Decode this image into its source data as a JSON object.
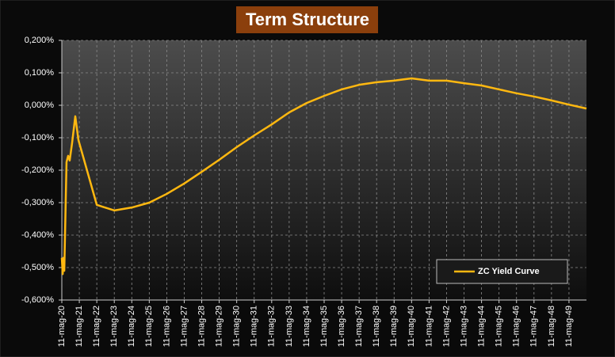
{
  "chart_data": {
    "type": "line",
    "title": "Term Structure",
    "x": [
      20,
      20.05,
      20.09,
      20.14,
      20.27,
      20.36,
      20.45,
      20.59,
      20.77,
      20.95,
      22,
      23,
      24,
      25,
      26,
      27,
      28,
      29,
      30,
      31,
      32,
      33,
      34,
      35,
      36,
      37,
      38,
      39,
      40,
      41,
      42,
      43,
      44,
      45,
      46,
      47,
      48,
      49,
      50
    ],
    "series": [
      {
        "name": "ZC Yield Curve",
        "color": "#ffb810",
        "values": [
          -0.47,
          -0.52,
          -0.47,
          -0.51,
          -0.175,
          -0.156,
          -0.17,
          -0.115,
          -0.034,
          -0.107,
          -0.307,
          -0.324,
          -0.315,
          -0.3,
          -0.273,
          -0.241,
          -0.205,
          -0.168,
          -0.129,
          -0.093,
          -0.059,
          -0.022,
          0.007,
          0.029,
          0.049,
          0.063,
          0.071,
          0.076,
          0.083,
          0.076,
          0.076,
          0.068,
          0.061,
          0.049,
          0.037,
          0.027,
          0.015,
          0.002,
          -0.01
        ]
      }
    ],
    "xlim": [
      20,
      50
    ],
    "xticks": [
      {
        "value": 20,
        "label": "11-mag-20"
      },
      {
        "value": 21,
        "label": "11-mag-21"
      },
      {
        "value": 22,
        "label": "11-mag-22"
      },
      {
        "value": 23,
        "label": "11-mag-23"
      },
      {
        "value": 24,
        "label": "11-mag-24"
      },
      {
        "value": 25,
        "label": "11-mag-25"
      },
      {
        "value": 26,
        "label": "11-mag-26"
      },
      {
        "value": 27,
        "label": "11-mag-27"
      },
      {
        "value": 28,
        "label": "11-mag-28"
      },
      {
        "value": 29,
        "label": "11-mag-29"
      },
      {
        "value": 30,
        "label": "11-mag-30"
      },
      {
        "value": 31,
        "label": "11-mag-31"
      },
      {
        "value": 32,
        "label": "11-mag-32"
      },
      {
        "value": 33,
        "label": "11-mag-33"
      },
      {
        "value": 34,
        "label": "11-mag-34"
      },
      {
        "value": 35,
        "label": "11-mag-35"
      },
      {
        "value": 36,
        "label": "11-mag-36"
      },
      {
        "value": 37,
        "label": "11-mag-37"
      },
      {
        "value": 38,
        "label": "11-mag-38"
      },
      {
        "value": 39,
        "label": "11-mag-39"
      },
      {
        "value": 40,
        "label": "11-mag-40"
      },
      {
        "value": 41,
        "label": "11-mag-41"
      },
      {
        "value": 42,
        "label": "11-mag-42"
      },
      {
        "value": 43,
        "label": "11-mag-43"
      },
      {
        "value": 44,
        "label": "11-mag-44"
      },
      {
        "value": 45,
        "label": "11-mag-45"
      },
      {
        "value": 46,
        "label": "11-mag-46"
      },
      {
        "value": 47,
        "label": "11-mag-47"
      },
      {
        "value": 48,
        "label": "11-mag-48"
      },
      {
        "value": 49,
        "label": "11-mag-49"
      }
    ],
    "ylim": [
      -0.6,
      0.2
    ],
    "yticks": [
      {
        "value": -0.6,
        "label": "-0,600%"
      },
      {
        "value": -0.5,
        "label": "-0,500%"
      },
      {
        "value": -0.4,
        "label": "-0,400%"
      },
      {
        "value": -0.3,
        "label": "-0,300%"
      },
      {
        "value": -0.2,
        "label": "-0,200%"
      },
      {
        "value": -0.1,
        "label": "-0,100%"
      },
      {
        "value": 0,
        "label": "0,000%"
      },
      {
        "value": 0.1,
        "label": "0,100%"
      },
      {
        "value": 0.2,
        "label": "0,200%"
      }
    ],
    "grid": true,
    "legend": "lower right"
  }
}
